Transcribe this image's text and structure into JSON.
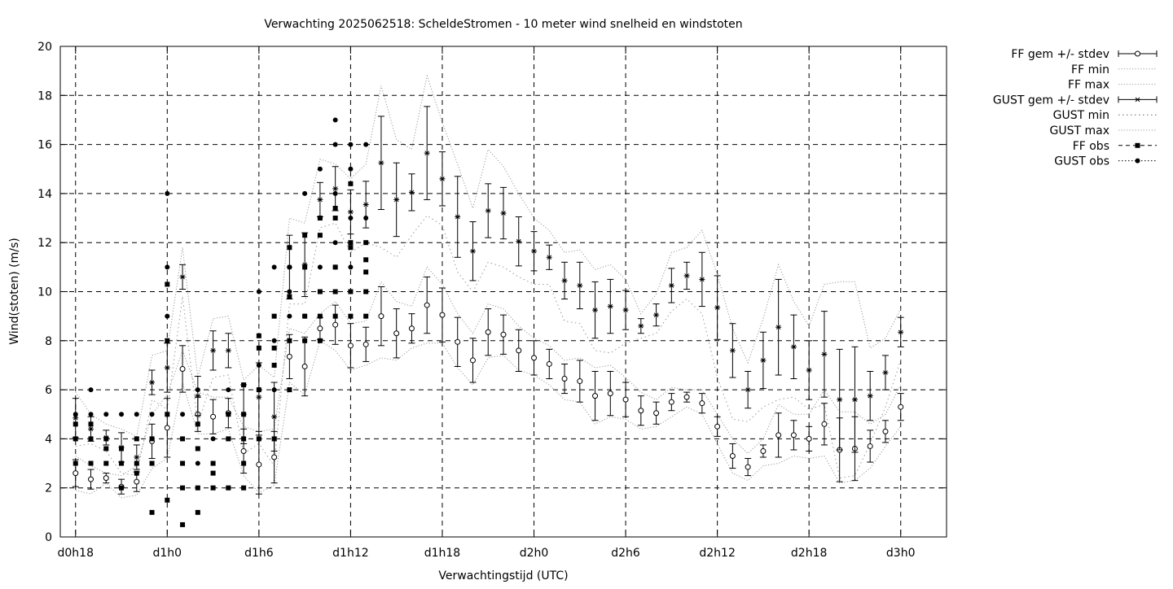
{
  "chart_data": {
    "type": "scatter",
    "title": "Verwachting 2025062518: ScheldeStromen - 10 meter wind snelheid en windstoten",
    "xlabel": "Verwachtingstijd (UTC)",
    "ylabel": "Wind(stoten) (m/s)",
    "xlim": [
      -1,
      57
    ],
    "ylim": [
      0,
      20
    ],
    "x_unit": "hours since d0h18",
    "grid": true,
    "legend_position": "outside-top-right",
    "x_ticks": [
      {
        "x": 0,
        "label": "d0h18"
      },
      {
        "x": 6,
        "label": "d1h0"
      },
      {
        "x": 12,
        "label": "d1h6"
      },
      {
        "x": 18,
        "label": "d1h12"
      },
      {
        "x": 24,
        "label": "d1h18"
      },
      {
        "x": 30,
        "label": "d2h0"
      },
      {
        "x": 36,
        "label": "d2h6"
      },
      {
        "x": 42,
        "label": "d2h12"
      },
      {
        "x": 48,
        "label": "d2h18"
      },
      {
        "x": 54,
        "label": "d3h0"
      }
    ],
    "y_ticks": [
      0,
      2,
      4,
      6,
      8,
      10,
      12,
      14,
      16,
      18,
      20
    ],
    "legend": [
      "FF gem +/- stdev",
      "FF min",
      "FF max",
      "GUST gem +/- stdev",
      "GUST min",
      "GUST max",
      "FF obs",
      "GUST obs"
    ],
    "x": [
      0,
      1,
      2,
      3,
      4,
      5,
      6,
      7,
      8,
      9,
      10,
      11,
      12,
      13,
      14,
      15,
      16,
      17,
      18,
      19,
      20,
      21,
      22,
      23,
      24,
      25,
      26,
      27,
      28,
      29,
      30,
      31,
      32,
      33,
      34,
      35,
      36,
      37,
      38,
      39,
      40,
      41,
      42,
      43,
      44,
      45,
      46,
      47,
      48,
      49,
      50,
      51,
      52,
      53,
      54
    ],
    "series": [
      {
        "name": "FF gem +/- stdev",
        "values": [
          2.6,
          2.35,
          2.4,
          2.05,
          2.25,
          3.9,
          4.45,
          6.85,
          5.0,
          4.9,
          5.05,
          3.5,
          2.95,
          3.25,
          7.35,
          6.95,
          8.5,
          8.65,
          7.8,
          7.85,
          9.0,
          8.3,
          8.5,
          9.45,
          9.05,
          7.95,
          7.2,
          8.35,
          8.25,
          7.6,
          7.3,
          7.05,
          6.45,
          6.35,
          5.75,
          5.85,
          5.6,
          5.15,
          5.05,
          5.5,
          5.7,
          5.45,
          4.5,
          3.3,
          2.85,
          3.5,
          4.15,
          4.15,
          4.0,
          4.6,
          3.55,
          3.6,
          3.7,
          4.3,
          5.3
        ],
        "stdev": [
          0.55,
          0.4,
          0.2,
          0.3,
          0.4,
          0.7,
          1.2,
          0.95,
          0.7,
          0.7,
          0.6,
          0.9,
          1.2,
          1.05,
          0.9,
          1.2,
          0.45,
          0.8,
          0.9,
          0.7,
          1.2,
          1.0,
          0.6,
          1.15,
          1.1,
          1.0,
          0.9,
          0.95,
          0.8,
          0.85,
          0.7,
          0.6,
          0.6,
          0.85,
          1.0,
          0.9,
          0.7,
          0.6,
          0.45,
          0.35,
          0.2,
          0.4,
          0.4,
          0.5,
          0.35,
          0.25,
          0.9,
          0.6,
          0.5,
          0.85,
          1.3,
          1.3,
          0.65,
          0.45,
          0.55
        ]
      },
      {
        "name": "FF min",
        "values": [
          1.9,
          1.75,
          2.2,
          1.6,
          1.7,
          2.8,
          3.2,
          6.3,
          4.2,
          4.2,
          4.4,
          2.5,
          1.8,
          2.1,
          6.3,
          5.8,
          8.0,
          7.6,
          6.8,
          7.0,
          7.3,
          7.2,
          7.7,
          7.9,
          7.9,
          6.9,
          6.2,
          7.3,
          7.4,
          6.8,
          6.6,
          6.2,
          5.6,
          5.5,
          4.6,
          4.9,
          4.8,
          4.4,
          4.5,
          4.9,
          5.3,
          5.0,
          3.8,
          2.6,
          2.3,
          2.9,
          3.0,
          3.3,
          3.2,
          3.3,
          2.2,
          2.3,
          2.8,
          3.7,
          4.5
        ]
      },
      {
        "name": "FF max",
        "values": [
          3.3,
          2.9,
          2.6,
          2.5,
          2.9,
          5.0,
          5.8,
          7.6,
          5.9,
          5.7,
          5.7,
          4.5,
          4.3,
          4.4,
          8.5,
          8.3,
          9.1,
          9.6,
          8.7,
          8.8,
          10.4,
          9.6,
          9.4,
          11.0,
          10.3,
          9.1,
          8.3,
          9.5,
          9.3,
          8.6,
          8.1,
          7.8,
          7.2,
          7.3,
          6.9,
          7.0,
          6.5,
          5.9,
          5.6,
          6.1,
          6.0,
          6.0,
          5.0,
          4.0,
          3.4,
          4.0,
          5.4,
          5.0,
          5.0,
          6.0,
          5.1,
          5.1,
          4.6,
          5.0,
          6.2
        ]
      },
      {
        "name": "GUST gem +/- stdev",
        "values": [
          4.85,
          4.4,
          4.05,
          3.65,
          3.25,
          6.3,
          6.9,
          10.6,
          5.75,
          7.6,
          7.6,
          5.0,
          5.7,
          4.9,
          11.0,
          11.1,
          13.75,
          14.2,
          13.25,
          13.55,
          15.25,
          13.75,
          14.05,
          15.65,
          14.6,
          13.05,
          11.65,
          13.3,
          13.2,
          12.05,
          11.65,
          11.4,
          10.45,
          10.25,
          9.25,
          9.4,
          9.25,
          8.6,
          9.05,
          10.25,
          10.65,
          10.5,
          9.35,
          7.6,
          6.0,
          7.2,
          8.55,
          7.75,
          6.8,
          7.45,
          5.6,
          5.6,
          5.75,
          6.7,
          8.35
        ]
      },
      {
        "name": "GUST gem stdev",
        "values": [
          0.8,
          0.5,
          0.3,
          0.6,
          0.5,
          0.5,
          1.0,
          0.5,
          0.8,
          0.8,
          0.7,
          1.2,
          1.4,
          1.4,
          1.3,
          1.3,
          0.7,
          0.9,
          0.9,
          0.95,
          1.9,
          1.5,
          0.75,
          1.9,
          1.1,
          1.65,
          1.2,
          1.1,
          1.05,
          1.0,
          0.8,
          0.5,
          0.75,
          0.95,
          1.15,
          1.1,
          0.8,
          0.3,
          0.45,
          0.7,
          0.55,
          1.1,
          1.3,
          1.1,
          0.75,
          1.15,
          1.95,
          1.3,
          1.2,
          1.75,
          2.05,
          2.15,
          1.0,
          0.7,
          0.6
        ]
      },
      {
        "name": "GUST min",
        "values": [
          3.7,
          3.8,
          3.5,
          2.6,
          2.5,
          5.6,
          5.2,
          9.8,
          4.6,
          6.5,
          6.6,
          3.4,
          3.8,
          2.9,
          9.5,
          9.5,
          12.6,
          12.8,
          11.6,
          12.0,
          11.8,
          11.4,
          12.3,
          13.1,
          12.7,
          10.8,
          10.0,
          11.2,
          11.0,
          10.6,
          10.3,
          10.3,
          8.8,
          8.7,
          7.6,
          7.5,
          7.9,
          8.1,
          8.3,
          9.2,
          9.7,
          9.1,
          6.5,
          4.8,
          4.7,
          5.3,
          5.6,
          5.7,
          5.2,
          5.4,
          2.4,
          2.5,
          3.8,
          5.3,
          7.2
        ]
      },
      {
        "name": "GUST max",
        "values": [
          5.9,
          5.0,
          4.6,
          4.4,
          4.1,
          7.4,
          7.6,
          11.8,
          6.5,
          8.9,
          9.0,
          6.4,
          7.0,
          6.5,
          13.0,
          12.8,
          15.4,
          15.2,
          14.6,
          15.2,
          18.4,
          16.2,
          15.8,
          18.8,
          16.9,
          15.2,
          13.4,
          15.8,
          15.1,
          14.0,
          13.0,
          12.5,
          11.6,
          11.7,
          10.9,
          11.1,
          10.5,
          9.1,
          9.9,
          11.6,
          11.8,
          12.5,
          10.7,
          8.5,
          7.1,
          8.9,
          11.1,
          9.6,
          8.6,
          10.3,
          10.4,
          10.4,
          7.7,
          8.1,
          9.3
        ]
      },
      {
        "name": "FF obs",
        "points": [
          [
            0,
            4.6
          ],
          [
            0,
            4.0
          ],
          [
            0,
            3.0
          ],
          [
            1,
            4.6
          ],
          [
            1,
            4.0
          ],
          [
            1,
            3.0
          ],
          [
            2,
            4.0
          ],
          [
            2,
            3.6
          ],
          [
            2,
            3.0
          ],
          [
            3,
            3.6
          ],
          [
            3,
            3.0
          ],
          [
            3,
            2.0
          ],
          [
            4,
            4.0
          ],
          [
            4,
            3.0
          ],
          [
            4,
            2.6
          ],
          [
            5,
            4.0
          ],
          [
            5,
            3.0
          ],
          [
            5,
            1.0
          ],
          [
            6,
            10.3
          ],
          [
            6,
            8.0
          ],
          [
            6,
            5.0
          ],
          [
            6,
            1.5
          ],
          [
            7,
            4.0
          ],
          [
            7,
            3.0
          ],
          [
            7,
            2.0
          ],
          [
            7,
            0.5
          ],
          [
            8,
            4.6
          ],
          [
            8,
            3.6
          ],
          [
            8,
            2.0
          ],
          [
            8,
            1.0
          ],
          [
            9,
            3.0
          ],
          [
            9,
            2.6
          ],
          [
            9,
            2.0
          ],
          [
            10,
            5.0
          ],
          [
            10,
            4.0
          ],
          [
            10,
            2.0
          ],
          [
            11,
            6.2
          ],
          [
            11,
            5.0
          ],
          [
            11,
            4.0
          ],
          [
            11,
            3.0
          ],
          [
            11,
            2.0
          ],
          [
            12,
            8.2
          ],
          [
            12,
            7.7
          ],
          [
            12,
            6.0
          ],
          [
            12,
            4.0
          ],
          [
            13,
            9.0
          ],
          [
            13,
            7.7
          ],
          [
            13,
            7.0
          ],
          [
            13,
            4.0
          ],
          [
            14,
            11.8
          ],
          [
            14,
            9.8
          ],
          [
            14,
            8.0
          ],
          [
            14,
            6.0
          ],
          [
            15,
            12.3
          ],
          [
            15,
            11.0
          ],
          [
            15,
            9.0
          ],
          [
            15,
            8.0
          ],
          [
            16,
            13.0
          ],
          [
            16,
            12.3
          ],
          [
            16,
            10.0
          ],
          [
            16,
            9.0
          ],
          [
            16,
            8.0
          ],
          [
            17,
            13.4
          ],
          [
            17,
            13.0
          ],
          [
            17,
            11.0
          ],
          [
            17,
            10.0
          ],
          [
            17,
            9.0
          ],
          [
            18,
            14.4
          ],
          [
            18,
            12.0
          ],
          [
            18,
            11.8
          ],
          [
            18,
            10.0
          ],
          [
            18,
            9.0
          ],
          [
            19,
            12.0
          ],
          [
            19,
            11.3
          ],
          [
            19,
            10.8
          ],
          [
            19,
            10.0
          ],
          [
            19,
            9.0
          ]
        ]
      },
      {
        "name": "GUST obs",
        "points": [
          [
            0,
            5.0
          ],
          [
            1,
            6.0
          ],
          [
            1,
            5.0
          ],
          [
            2,
            5.0
          ],
          [
            3,
            5.0
          ],
          [
            4,
            5.0
          ],
          [
            5,
            5.0
          ],
          [
            6,
            14.0
          ],
          [
            6,
            11.0
          ],
          [
            6,
            9.0
          ],
          [
            7,
            5.0
          ],
          [
            8,
            6.0
          ],
          [
            8,
            3.0
          ],
          [
            9,
            4.0
          ],
          [
            10,
            6.0
          ],
          [
            10,
            5.0
          ],
          [
            11,
            5.0
          ],
          [
            12,
            10.0
          ],
          [
            12,
            7.0
          ],
          [
            12,
            6.0
          ],
          [
            13,
            11.0
          ],
          [
            13,
            8.0
          ],
          [
            13,
            6.0
          ],
          [
            14,
            11.0
          ],
          [
            14,
            10.0
          ],
          [
            14,
            9.0
          ],
          [
            15,
            14.0
          ],
          [
            15,
            11.0
          ],
          [
            15,
            9.0
          ],
          [
            16,
            15.0
          ],
          [
            16,
            13.0
          ],
          [
            16,
            11.0
          ],
          [
            17,
            17.0
          ],
          [
            17,
            16.0
          ],
          [
            17,
            14.0
          ],
          [
            17,
            12.0
          ],
          [
            17,
            11.0
          ],
          [
            18,
            16.0
          ],
          [
            18,
            15.0
          ],
          [
            18,
            13.0
          ],
          [
            18,
            11.0
          ],
          [
            19,
            16.0
          ],
          [
            19,
            13.0
          ]
        ]
      }
    ]
  }
}
